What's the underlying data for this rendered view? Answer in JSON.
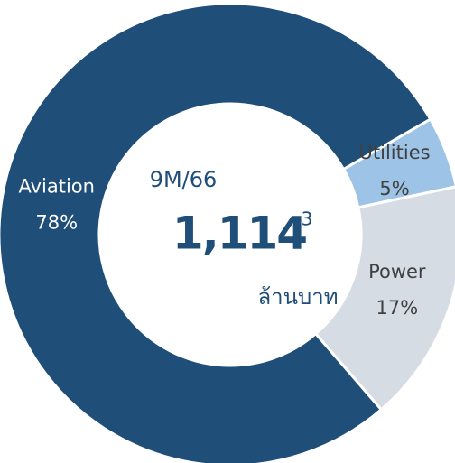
{
  "chart_data": {
    "type": "donut",
    "categories": [
      "Utilities",
      "Power",
      "Aviation"
    ],
    "values": [
      5,
      17,
      78
    ],
    "value_labels": [
      "5%",
      "17%",
      "78%"
    ],
    "colors": [
      "#9dc3e6",
      "#d6dce4",
      "#1f4e79"
    ],
    "label_colors": [
      "#404040",
      "#404040",
      "#ffffff"
    ],
    "center_title": "9M/66",
    "center_value": "1,114",
    "center_footnote": "3",
    "center_unit": "ล้านบาท"
  }
}
